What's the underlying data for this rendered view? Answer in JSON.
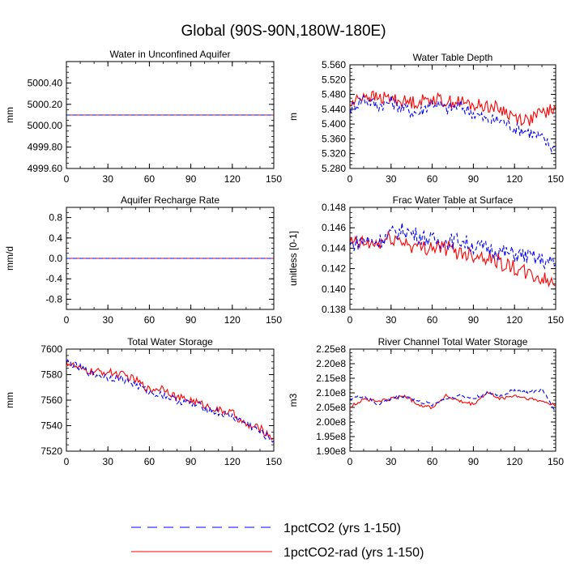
{
  "title": "Global (90S-90N,180W-180E)",
  "legend": [
    {
      "name": "1pctCO2 (yrs 1-150)",
      "color": "#0000ff",
      "dash": true
    },
    {
      "name": "1pctCO2-rad (yrs 1-150)",
      "color": "#ff0000",
      "dash": false
    }
  ],
  "chart_data": [
    {
      "type": "line",
      "title": "Water in Unconfined Aquifer",
      "ylabel": "mm",
      "xlim": [
        0,
        150
      ],
      "ylim": [
        4999.6,
        5000.6
      ],
      "xticks": [
        "0",
        "30",
        "60",
        "90",
        "120",
        "150"
      ],
      "yticks": [
        "4999.60",
        "4999.80",
        "5000.00",
        "5000.20",
        "5000.40"
      ],
      "series": [
        {
          "name": "1pctCO2 (yrs 1-150)",
          "constant": 5000.1
        },
        {
          "name": "1pctCO2-rad (yrs 1-150)",
          "constant": 5000.1
        }
      ]
    },
    {
      "type": "line",
      "title": "Water Table Depth",
      "ylabel": "m",
      "xlim": [
        0,
        150
      ],
      "ylim": [
        5.28,
        5.56
      ],
      "xticks": [
        "0",
        "30",
        "60",
        "90",
        "120",
        "150"
      ],
      "yticks": [
        "5.280",
        "5.320",
        "5.360",
        "5.400",
        "5.440",
        "5.480",
        "5.520",
        "5.560"
      ],
      "series": [
        {
          "name": "1pctCO2 (yrs 1-150)",
          "x": [
            0,
            10,
            20,
            30,
            40,
            50,
            60,
            70,
            80,
            90,
            100,
            110,
            120,
            130,
            140,
            150
          ],
          "y": [
            5.44,
            5.47,
            5.45,
            5.46,
            5.44,
            5.43,
            5.46,
            5.44,
            5.45,
            5.43,
            5.41,
            5.41,
            5.39,
            5.38,
            5.36,
            5.33
          ]
        },
        {
          "name": "1pctCO2-rad (yrs 1-150)",
          "x": [
            0,
            10,
            20,
            30,
            40,
            50,
            60,
            70,
            80,
            90,
            100,
            110,
            120,
            130,
            140,
            150
          ],
          "y": [
            5.45,
            5.48,
            5.47,
            5.47,
            5.46,
            5.46,
            5.47,
            5.46,
            5.46,
            5.45,
            5.45,
            5.44,
            5.42,
            5.41,
            5.43,
            5.44
          ]
        }
      ]
    },
    {
      "type": "line",
      "title": "Aquifer Recharge Rate",
      "ylabel": "mm/d",
      "xlim": [
        0,
        150
      ],
      "ylim": [
        -1,
        1
      ],
      "xticks": [
        "0",
        "30",
        "60",
        "90",
        "120",
        "150"
      ],
      "yticks": [
        "-0.8",
        "-0.4",
        "0.0",
        "0.4",
        "0.8"
      ],
      "series": [
        {
          "name": "1pctCO2 (yrs 1-150)",
          "constant": 0.0
        },
        {
          "name": "1pctCO2-rad (yrs 1-150)",
          "constant": 0.0
        }
      ]
    },
    {
      "type": "line",
      "title": "Frac Water Table at Surface",
      "ylabel": "unitless [0-1]",
      "xlim": [
        0,
        150
      ],
      "ylim": [
        0.138,
        0.148
      ],
      "xticks": [
        "0",
        "30",
        "60",
        "90",
        "120",
        "150"
      ],
      "yticks": [
        "0.138",
        "0.140",
        "0.142",
        "0.144",
        "0.146",
        "0.148"
      ],
      "series": [
        {
          "name": "1pctCO2 (yrs 1-150)",
          "x": [
            0,
            10,
            20,
            30,
            40,
            50,
            60,
            70,
            80,
            90,
            100,
            110,
            120,
            130,
            140,
            150
          ],
          "y": [
            0.1443,
            0.1448,
            0.1446,
            0.1454,
            0.1458,
            0.1452,
            0.1448,
            0.1446,
            0.1448,
            0.1442,
            0.144,
            0.1436,
            0.1434,
            0.1432,
            0.1428,
            0.1424
          ]
        },
        {
          "name": "1pctCO2-rad (yrs 1-150)",
          "x": [
            0,
            10,
            20,
            30,
            40,
            50,
            60,
            70,
            80,
            90,
            100,
            110,
            120,
            130,
            140,
            150
          ],
          "y": [
            0.1445,
            0.1444,
            0.1444,
            0.145,
            0.1446,
            0.144,
            0.1442,
            0.144,
            0.1436,
            0.1434,
            0.1432,
            0.1426,
            0.142,
            0.1414,
            0.141,
            0.1404
          ]
        }
      ]
    },
    {
      "type": "line",
      "title": "Total Water Storage",
      "ylabel": "mm",
      "xlim": [
        0,
        150
      ],
      "ylim": [
        7520,
        7600
      ],
      "xticks": [
        "0",
        "30",
        "60",
        "90",
        "120",
        "150"
      ],
      "yticks": [
        "7520",
        "7540",
        "7560",
        "7580",
        "7600"
      ],
      "series": [
        {
          "name": "1pctCO2 (yrs 1-150)",
          "x": [
            0,
            10,
            20,
            30,
            40,
            50,
            60,
            70,
            80,
            90,
            100,
            110,
            120,
            130,
            140,
            150
          ],
          "y": [
            7590,
            7585,
            7580,
            7578,
            7577,
            7572,
            7566,
            7564,
            7560,
            7557,
            7554,
            7550,
            7547,
            7542,
            7535,
            7528
          ]
        },
        {
          "name": "1pctCO2-rad (yrs 1-150)",
          "x": [
            0,
            10,
            20,
            30,
            40,
            50,
            60,
            70,
            80,
            90,
            100,
            110,
            120,
            130,
            140,
            150
          ],
          "y": [
            7590,
            7584,
            7582,
            7582,
            7580,
            7576,
            7568,
            7570,
            7562,
            7560,
            7556,
            7552,
            7550,
            7540,
            7538,
            7530
          ]
        }
      ]
    },
    {
      "type": "line",
      "title": "River Channel Total Water Storage",
      "ylabel": "m3",
      "xlim": [
        0,
        150
      ],
      "ylim": [
        190000000.0,
        225000000.0
      ],
      "xticks": [
        "0",
        "30",
        "60",
        "90",
        "120",
        "150"
      ],
      "yticks": [
        "1.90e8",
        "1.95e8",
        "2.00e8",
        "2.05e8",
        "2.10e8",
        "2.15e8",
        "2.20e8",
        "2.25e8"
      ],
      "series": [
        {
          "name": "1pctCO2 (yrs 1-150)",
          "x": [
            0,
            10,
            20,
            30,
            40,
            50,
            60,
            70,
            80,
            90,
            100,
            110,
            120,
            130,
            140,
            150
          ],
          "y": [
            208000000.0,
            209000000.0,
            206000000.0,
            208000000.0,
            209000000.0,
            207000000.0,
            206000000.0,
            208000000.0,
            209000000.0,
            208000000.0,
            210000000.0,
            209000000.0,
            211000000.0,
            210000000.0,
            211000000.0,
            204000000.0
          ]
        },
        {
          "name": "1pctCO2-rad (yrs 1-150)",
          "x": [
            0,
            10,
            20,
            30,
            40,
            50,
            60,
            70,
            80,
            90,
            100,
            110,
            120,
            130,
            140,
            150
          ],
          "y": [
            205000000.0,
            208000000.0,
            207000000.0,
            208000000.0,
            209000000.0,
            206000000.0,
            205000000.0,
            209000000.0,
            207000000.0,
            206000000.0,
            210000000.0,
            208000000.0,
            209000000.0,
            208000000.0,
            207000000.0,
            206000000.0
          ]
        }
      ]
    }
  ]
}
